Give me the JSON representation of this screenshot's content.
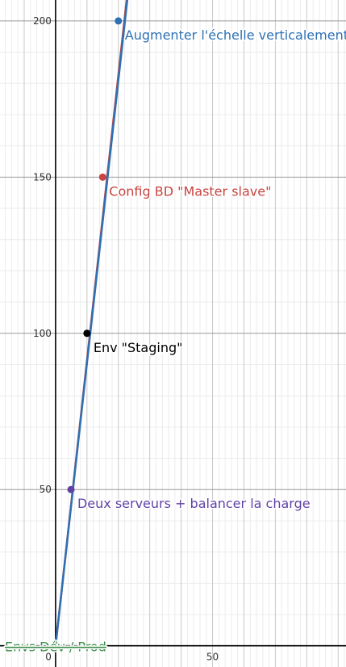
{
  "chart_data": {
    "type": "line",
    "xlim": [
      -17.7,
      92.5
    ],
    "ylim": [
      -6.8,
      206.7
    ],
    "grid": true,
    "x_ticks": [
      {
        "value": 0,
        "label": "0"
      },
      {
        "value": 50,
        "label": "50"
      }
    ],
    "y_ticks": [
      {
        "value": 50,
        "label": "50"
      },
      {
        "value": 100,
        "label": "100"
      },
      {
        "value": 150,
        "label": "150"
      },
      {
        "value": 200,
        "label": "200"
      }
    ],
    "series": [
      {
        "color": "#c74440",
        "x": [
          0,
          23
        ],
        "y": [
          0,
          210
        ]
      },
      {
        "color": "#2d70b3",
        "x": [
          0,
          23.2
        ],
        "y": [
          0,
          210
        ]
      }
    ],
    "points": [
      {
        "x": 0,
        "y": 0,
        "color": "#388c46",
        "label": "Envs Dév / Prod",
        "strike": true
      },
      {
        "x": 4.9,
        "y": 50,
        "color": "#6042a6",
        "label": "Deux serveurs + balancer la charge"
      },
      {
        "x": 10,
        "y": 100,
        "color": "#000000",
        "label": "Env \"Staging\""
      },
      {
        "x": 15,
        "y": 150,
        "color": "#c74440",
        "label": "Config BD \"Master slave\""
      },
      {
        "x": 20,
        "y": 200,
        "color": "#2d70b3",
        "label": "Augmenter l'échelle verticalement"
      }
    ]
  }
}
